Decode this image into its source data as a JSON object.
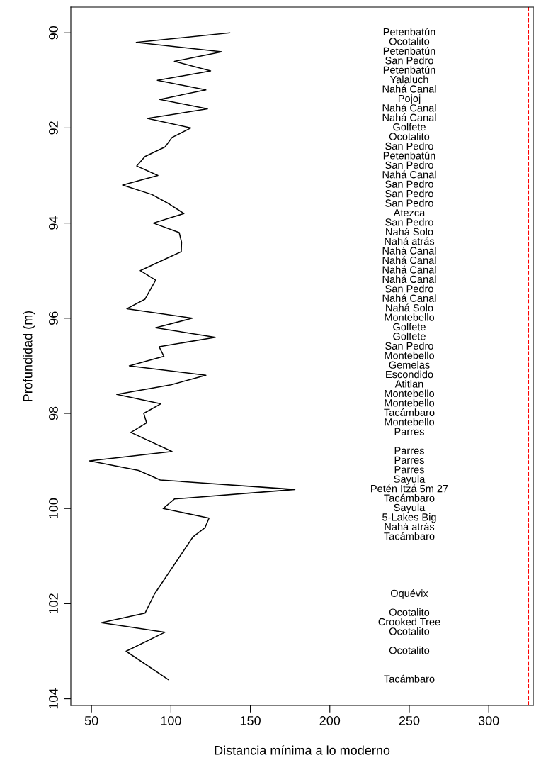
{
  "chart_data": {
    "type": "line",
    "xlabel": "Distancia mínima a lo moderno",
    "ylabel": "Profundidad (m)",
    "series": [
      {
        "color": "#000000",
        "marker": "none",
        "line_style": "solid",
        "x": [
          137,
          78.2,
          132,
          102.2,
          125,
          91.5,
          122,
          93,
          123,
          85.2,
          112.6,
          100.7,
          96.3,
          83.7,
          78.5,
          91.8,
          69.6,
          88.1,
          99,
          108.2,
          88.9,
          105.2,
          106.7,
          106.5,
          93.6,
          80.7,
          90.4,
          87,
          83.7,
          72.3,
          113.4,
          90.4,
          128,
          92.6,
          95.6,
          73.8,
          122,
          100,
          65.9,
          93.6,
          82.9,
          84.7,
          74.8,
          100.7,
          48.8,
          79.7,
          93.3,
          178,
          102.2,
          95.1,
          124,
          121.5,
          113.8,
          89.6,
          83.7,
          56.2,
          96.3,
          71.8,
          98.5
        ],
        "values": [
          90.0,
          90.2,
          90.4,
          90.6,
          90.8,
          91.0,
          91.2,
          91.4,
          91.6,
          91.8,
          92.0,
          92.2,
          92.4,
          92.6,
          92.8,
          93.0,
          93.2,
          93.4,
          93.6,
          93.8,
          94.0,
          94.2,
          94.4,
          94.6,
          94.8,
          95.0,
          95.2,
          95.4,
          95.6,
          95.8,
          96.0,
          96.2,
          96.4,
          96.6,
          96.8,
          97.0,
          97.2,
          97.4,
          97.6,
          97.8,
          98.0,
          98.2,
          98.4,
          98.8,
          99.0,
          99.2,
          99.4,
          99.6,
          99.8,
          100.0,
          100.2,
          100.4,
          100.6,
          101.8,
          102.2,
          102.4,
          102.6,
          103.0,
          103.6
        ]
      }
    ],
    "xlim": [
      37,
      328
    ],
    "xticks": [
      50,
      100,
      150,
      200,
      250,
      300
    ],
    "ylim": [
      104.14,
      89.46
    ],
    "yticks": [
      90,
      92,
      94,
      96,
      98,
      100,
      102,
      104
    ],
    "grid": false,
    "legend": false,
    "ref_lines": [
      {
        "axis": "x",
        "value": 325,
        "label": null,
        "color": "#ff0000",
        "line_style": "dashed"
      }
    ],
    "annotations": [
      "Petenbatún",
      "Ocotalito",
      "Petenbatún",
      "San Pedro",
      "Petenbatún",
      "Yalaluch",
      "Nahá Canal",
      "Pojoj",
      "Nahá Canal",
      "Nahá Canal",
      "Golfete",
      "Ocotalito",
      "San Pedro",
      "Petenbatún",
      "San Pedro",
      "Nahá Canal",
      "San Pedro",
      "San Pedro",
      "San Pedro",
      "Atezca",
      "San Pedro",
      "Nahá Solo",
      "Nahá atrás",
      "Nahá Canal",
      "Nahá Canal",
      "Nahá Canal",
      "Nahá Canal",
      "San Pedro",
      "Nahá Canal",
      "Nahá Solo",
      "Montebello",
      "Golfete",
      "Golfete",
      "San Pedro",
      "Montebello",
      "Gemelas",
      "Escondido",
      "Atitlan",
      "Montebello",
      "Montebello",
      "Tacámbaro",
      "Montebello",
      "Parres",
      "Parres",
      "Parres",
      "Parres",
      "Sayula",
      "Petén Itzá 5m 27",
      "Tacámbaro",
      "Sayula",
      "5-Lakes Big",
      "Nahá atrás",
      "Tacámbaro",
      "Oquévix",
      "Ocotalito",
      "Crooked Tree",
      "Ocotalito",
      "Ocotalito",
      "Tacámbaro"
    ]
  }
}
